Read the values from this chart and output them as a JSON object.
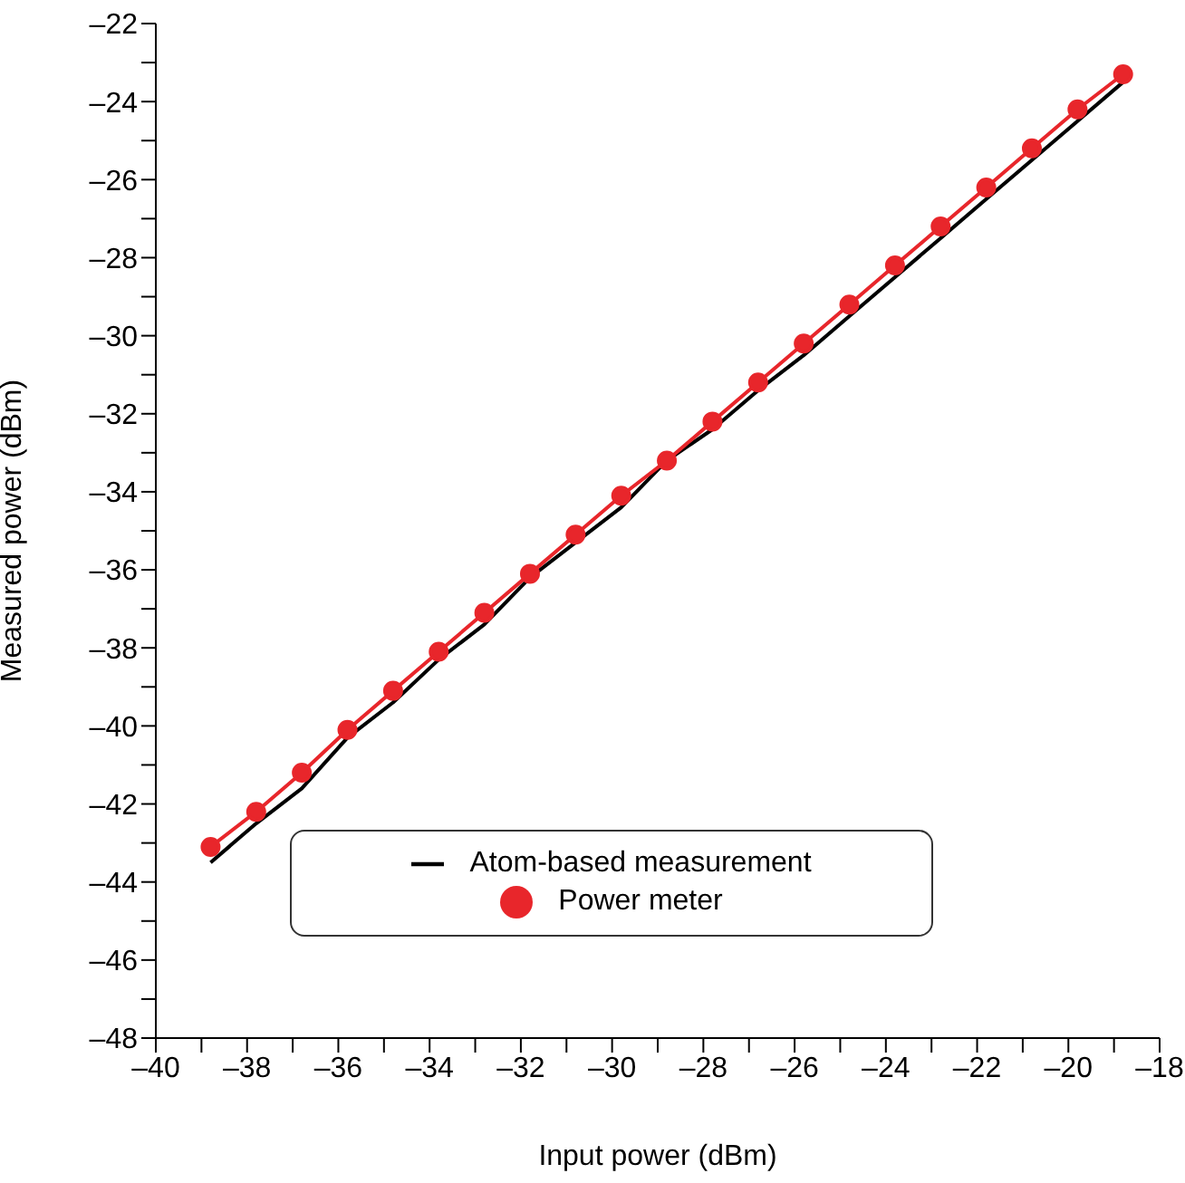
{
  "chart_data": {
    "type": "line",
    "xlabel": "Input power (dBm)",
    "ylabel": "Measured power (dBm)",
    "x": [
      -38.8,
      -37.8,
      -36.8,
      -35.8,
      -34.8,
      -33.8,
      -32.8,
      -31.8,
      -30.8,
      -29.8,
      -28.8,
      -27.8,
      -26.8,
      -25.8,
      -24.8,
      -23.8,
      -22.8,
      -21.8,
      -20.8,
      -19.8,
      -18.8
    ],
    "series": [
      {
        "name": "Atom-based measurement",
        "color": "#000000",
        "marker": "none",
        "values": [
          -43.5,
          -42.5,
          -41.6,
          -40.3,
          -39.4,
          -38.3,
          -37.4,
          -36.2,
          -35.3,
          -34.4,
          -33.2,
          -32.4,
          -31.4,
          -30.5,
          -29.5,
          -28.5,
          -27.5,
          -26.5,
          -25.5,
          -24.5,
          -23.5
        ]
      },
      {
        "name": "Power meter",
        "color": "#e8262b",
        "marker": "circle",
        "values": [
          -43.1,
          -42.2,
          -41.2,
          -40.1,
          -39.1,
          -38.1,
          -37.1,
          -36.1,
          -35.1,
          -34.1,
          -33.2,
          -32.2,
          -31.2,
          -30.2,
          -29.2,
          -28.2,
          -27.2,
          -26.2,
          -25.2,
          -24.2,
          -23.3
        ]
      }
    ],
    "xlim": [
      -40,
      -18
    ],
    "xticks": [
      {
        "value": -40,
        "label": "–40"
      },
      {
        "value": -39,
        "label": null
      },
      {
        "value": -38,
        "label": "–38"
      },
      {
        "value": -37,
        "label": null
      },
      {
        "value": -36,
        "label": "–36"
      },
      {
        "value": -35,
        "label": null
      },
      {
        "value": -34,
        "label": "–34"
      },
      {
        "value": -33,
        "label": null
      },
      {
        "value": -32,
        "label": "–32"
      },
      {
        "value": -31,
        "label": null
      },
      {
        "value": -30,
        "label": "–30"
      },
      {
        "value": -29,
        "label": null
      },
      {
        "value": -28,
        "label": "–28"
      },
      {
        "value": -27,
        "label": null
      },
      {
        "value": -26,
        "label": "–26"
      },
      {
        "value": -25,
        "label": null
      },
      {
        "value": -24,
        "label": "–24"
      },
      {
        "value": -23,
        "label": null
      },
      {
        "value": -22,
        "label": "–22"
      },
      {
        "value": -21,
        "label": null
      },
      {
        "value": -20,
        "label": "–20"
      },
      {
        "value": -19,
        "label": null
      },
      {
        "value": -18,
        "label": "–18"
      }
    ],
    "ylim": [
      -48,
      -22
    ],
    "yticks": [
      {
        "value": -48,
        "label": "–48"
      },
      {
        "value": -47,
        "label": null
      },
      {
        "value": -46,
        "label": "–46"
      },
      {
        "value": -45,
        "label": null
      },
      {
        "value": -44,
        "label": "–44"
      },
      {
        "value": -43,
        "label": null
      },
      {
        "value": -42,
        "label": "–42"
      },
      {
        "value": -41,
        "label": null
      },
      {
        "value": -40,
        "label": "–40"
      },
      {
        "value": -39,
        "label": null
      },
      {
        "value": -38,
        "label": "–38"
      },
      {
        "value": -37,
        "label": null
      },
      {
        "value": -36,
        "label": "–36"
      },
      {
        "value": -35,
        "label": null
      },
      {
        "value": -34,
        "label": "–34"
      },
      {
        "value": -33,
        "label": null
      },
      {
        "value": -32,
        "label": "–32"
      },
      {
        "value": -31,
        "label": null
      },
      {
        "value": -30,
        "label": "–30"
      },
      {
        "value": -29,
        "label": null
      },
      {
        "value": -28,
        "label": "–28"
      },
      {
        "value": -27,
        "label": null
      },
      {
        "value": -26,
        "label": "–26"
      },
      {
        "value": -25,
        "label": null
      },
      {
        "value": -24,
        "label": "–24"
      },
      {
        "value": -23,
        "label": null
      },
      {
        "value": -22,
        "label": "–22"
      }
    ],
    "grid": false,
    "legend": "bottom",
    "line_style": "solid"
  }
}
